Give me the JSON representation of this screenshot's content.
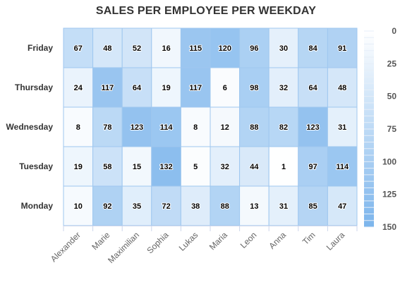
{
  "chart_data": {
    "type": "heatmap",
    "title": "SALES PER EMPLOYEE PER WEEKDAY",
    "x_categories": [
      "Alexander",
      "Marie",
      "Maximilian",
      "Sophia",
      "Lukas",
      "Maria",
      "Leon",
      "Anna",
      "Tim",
      "Laura"
    ],
    "y_categories": [
      "Monday",
      "Tuesday",
      "Wednesday",
      "Thursday",
      "Friday"
    ],
    "rows": [
      {
        "y": "Friday",
        "values": [
          67,
          48,
          52,
          16,
          115,
          120,
          96,
          30,
          84,
          91
        ]
      },
      {
        "y": "Thursday",
        "values": [
          24,
          117,
          64,
          19,
          117,
          6,
          98,
          32,
          64,
          48
        ]
      },
      {
        "y": "Wednesday",
        "values": [
          8,
          78,
          123,
          114,
          8,
          12,
          88,
          82,
          123,
          31
        ]
      },
      {
        "y": "Tuesday",
        "values": [
          19,
          58,
          15,
          132,
          5,
          32,
          44,
          1,
          97,
          114
        ]
      },
      {
        "y": "Monday",
        "values": [
          10,
          92,
          35,
          72,
          38,
          88,
          13,
          31,
          85,
          47
        ]
      }
    ],
    "color_axis": {
      "min": 0,
      "max": 150,
      "ticks": [
        0,
        25,
        50,
        75,
        100,
        125,
        150
      ],
      "min_color": "#ffffff",
      "max_color": "#7cb5ec"
    },
    "legend_placement": "right",
    "data_labels": true
  },
  "colors": {
    "cell_border": "#9fc7ef",
    "axis_line": "#ccd6eb"
  }
}
